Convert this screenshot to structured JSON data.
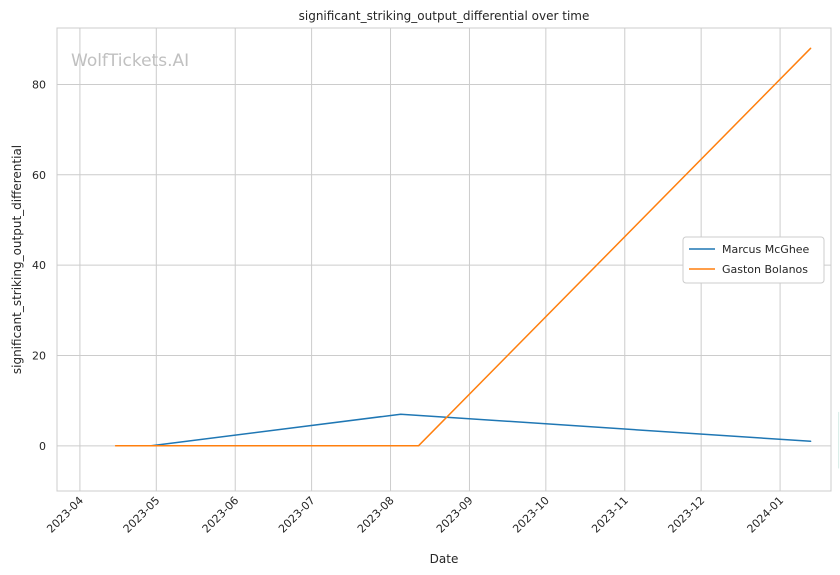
{
  "chart_data": {
    "type": "line",
    "title": "significant_striking_output_differential over time",
    "xlabel": "Date",
    "ylabel": "significant_striking_output_differential",
    "watermark": "WolfTickets.AI",
    "x_ticks": [
      "2023-04",
      "2023-05",
      "2023-06",
      "2023-07",
      "2023-08",
      "2023-09",
      "2023-10",
      "2023-11",
      "2023-12",
      "2024-01"
    ],
    "y_ticks": [
      0,
      20,
      40,
      60,
      80
    ],
    "xlim": [
      "2023-03-23",
      "2024-01-21"
    ],
    "ylim": [
      -10,
      92.5
    ],
    "grid": true,
    "legend_position": "center-right",
    "series": [
      {
        "name": "Marcus McGhee",
        "color": "#1f77b4",
        "x": [
          "2023-04-29",
          "2023-08-05",
          "2024-01-13"
        ],
        "y": [
          0,
          7,
          1
        ]
      },
      {
        "name": "Gaston Bolanos",
        "color": "#ff7f0e",
        "x": [
          "2023-04-15",
          "2023-08-12",
          "2024-01-13"
        ],
        "y": [
          0,
          0,
          88
        ]
      }
    ]
  }
}
